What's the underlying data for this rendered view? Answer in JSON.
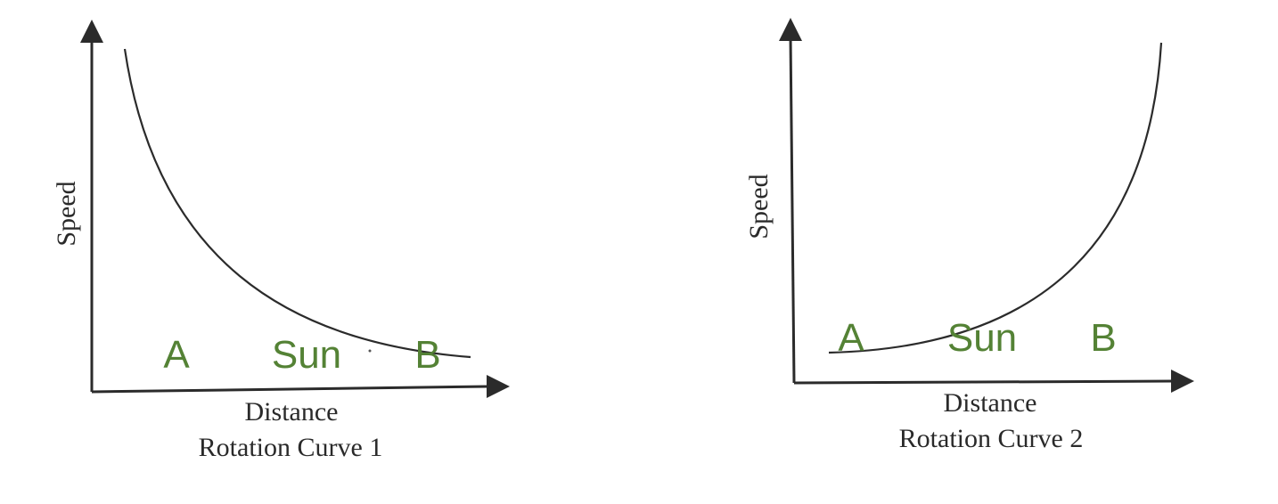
{
  "colors": {
    "ink": "#2b2b2b",
    "point_label": "#548235"
  },
  "panels": [
    {
      "y_axis_label": "Speed",
      "x_axis_label": "Distance",
      "caption": "Rotation Curve 1",
      "curve_shape": "decreasing",
      "points": {
        "a": "A",
        "sun": "Sun",
        "b": "B"
      }
    },
    {
      "y_axis_label": "Speed",
      "x_axis_label": "Distance",
      "caption": "Rotation Curve 2",
      "curve_shape": "increasing",
      "points": {
        "a": "A",
        "sun": "Sun",
        "b": "B"
      }
    }
  ]
}
